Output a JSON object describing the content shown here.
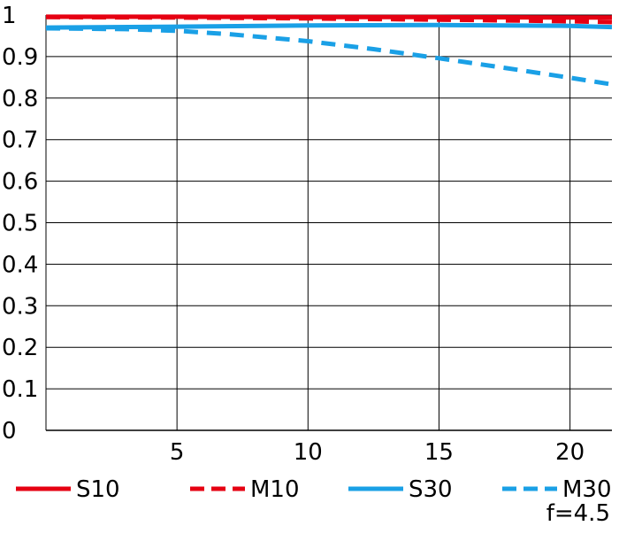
{
  "chart_data": {
    "type": "line",
    "xlim": [
      0,
      21.6
    ],
    "ylim": [
      0,
      1
    ],
    "grid": true,
    "x_ticks": [
      "5",
      "10",
      "15",
      "20"
    ],
    "y_ticks": [
      "0",
      "0.1",
      "0.2",
      "0.3",
      "0.4",
      "0.5",
      "0.6",
      "0.7",
      "0.8",
      "0.9",
      "1"
    ],
    "legend_placement": "bottom",
    "series": [
      {
        "name": "S10",
        "color": "#e60012",
        "dash": false,
        "x": [
          0,
          5,
          10,
          15,
          20,
          21.6
        ],
        "y": [
          0.996,
          0.996,
          0.995,
          0.995,
          0.994,
          0.994
        ]
      },
      {
        "name": "M10",
        "color": "#e60012",
        "dash": true,
        "x": [
          0,
          5,
          10,
          15,
          20,
          21.6
        ],
        "y": [
          0.995,
          0.994,
          0.992,
          0.989,
          0.985,
          0.983
        ]
      },
      {
        "name": "S30",
        "color": "#1aa0e6",
        "dash": false,
        "x": [
          0,
          5,
          10,
          15,
          20,
          21.6
        ],
        "y": [
          0.97,
          0.972,
          0.975,
          0.976,
          0.974,
          0.971
        ]
      },
      {
        "name": "M30",
        "color": "#1aa0e6",
        "dash": true,
        "x": [
          0,
          3,
          5,
          7,
          10,
          12.5,
          15,
          17.5,
          20,
          21.6
        ],
        "y": [
          0.968,
          0.966,
          0.962,
          0.954,
          0.937,
          0.918,
          0.896,
          0.873,
          0.849,
          0.833
        ]
      }
    ],
    "annotation": "f=4.5"
  }
}
